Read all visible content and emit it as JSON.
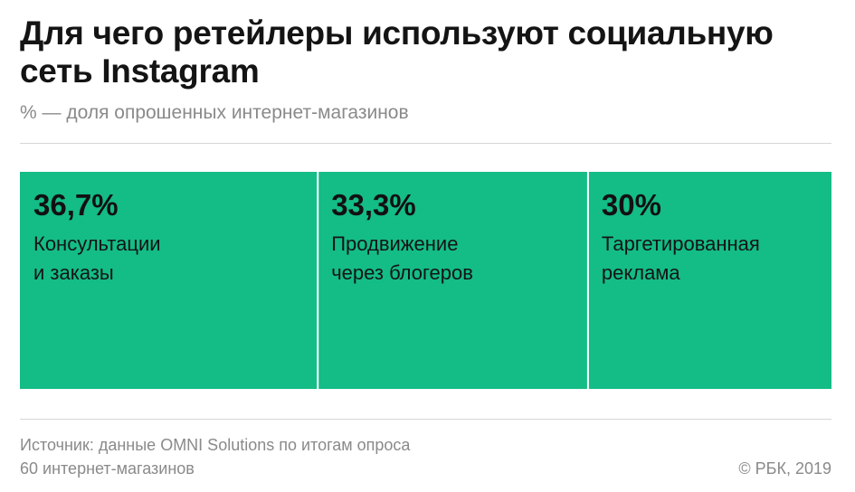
{
  "header": {
    "title": "Для чего ретейлеры используют социальную сеть Instagram",
    "subtitle": "% — доля опрошенных интернет-магазинов"
  },
  "footer": {
    "source": "Источник: данные OMNI Solutions по итогам опроса\n60 интернет-магазинов",
    "copyright": "© РБК, 2019"
  },
  "colors": {
    "tile": "#14bc86",
    "divider": "#ffffff",
    "rule": "#d6d6d6"
  },
  "chart_data": {
    "type": "bar",
    "title": "Для чего ретейлеры используют социальную сеть Instagram",
    "subtitle": "% — доля опрошенных интернет-магазинов",
    "categories": [
      "Консультации и заказы",
      "Продвижение через блогеров",
      "Таргетированная реклама"
    ],
    "values": [
      36.7,
      33.3,
      30
    ],
    "value_labels": [
      "36,7%",
      "33,3%",
      "30%"
    ],
    "label_lines": [
      "Консультации\nи заказы",
      "Продвижение\nчерез блогеров",
      "Таргетированная\nреклама"
    ],
    "unit": "%"
  }
}
